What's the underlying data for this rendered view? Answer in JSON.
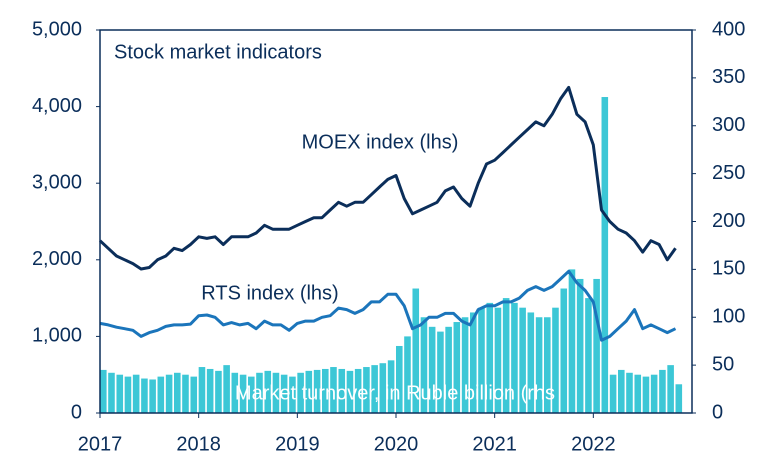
{
  "chart_data": {
    "type": "line",
    "title": "Stock market indicators",
    "x": [
      2017,
      2017.083,
      2017.167,
      2017.25,
      2017.333,
      2017.417,
      2017.5,
      2017.583,
      2017.667,
      2017.75,
      2017.833,
      2017.917,
      2018,
      2018.083,
      2018.167,
      2018.25,
      2018.333,
      2018.417,
      2018.5,
      2018.583,
      2018.667,
      2018.75,
      2018.833,
      2018.917,
      2019,
      2019.083,
      2019.167,
      2019.25,
      2019.333,
      2019.417,
      2019.5,
      2019.583,
      2019.667,
      2019.75,
      2019.833,
      2019.917,
      2020,
      2020.083,
      2020.167,
      2020.25,
      2020.333,
      2020.417,
      2020.5,
      2020.583,
      2020.667,
      2020.75,
      2020.833,
      2020.917,
      2021,
      2021.083,
      2021.167,
      2021.25,
      2021.333,
      2021.417,
      2021.5,
      2021.583,
      2021.667,
      2021.75,
      2021.833,
      2021.917,
      2022,
      2022.083,
      2022.167,
      2022.25,
      2022.333,
      2022.417,
      2022.5,
      2022.583,
      2022.667,
      2022.75,
      2022.833
    ],
    "series": [
      {
        "name": "Market turnover, in Ruble billion (rhs",
        "type": "bar",
        "axis": "y2",
        "color": "#3cc7d6",
        "values": [
          45,
          42,
          40,
          38,
          40,
          36,
          35,
          38,
          40,
          42,
          40,
          38,
          48,
          46,
          44,
          50,
          42,
          40,
          38,
          42,
          44,
          42,
          40,
          38,
          42,
          44,
          45,
          46,
          48,
          46,
          44,
          46,
          48,
          50,
          52,
          55,
          70,
          80,
          130,
          100,
          90,
          85,
          90,
          95,
          100,
          105,
          110,
          115,
          110,
          120,
          115,
          110,
          105,
          100,
          100,
          110,
          130,
          150,
          140,
          120,
          140,
          330,
          40,
          45,
          42,
          40,
          38,
          40,
          45,
          50,
          30
        ]
      },
      {
        "name": "MOEX index (lhs)",
        "color": "#0b2e5a",
        "values": [
          2250,
          2150,
          2050,
          2000,
          1950,
          1880,
          1900,
          2000,
          2050,
          2150,
          2120,
          2200,
          2300,
          2280,
          2300,
          2200,
          2300,
          2300,
          2300,
          2350,
          2450,
          2400,
          2400,
          2400,
          2450,
          2500,
          2550,
          2550,
          2650,
          2750,
          2700,
          2750,
          2750,
          2850,
          2950,
          3050,
          3100,
          2800,
          2600,
          2650,
          2700,
          2750,
          2900,
          2950,
          2800,
          2700,
          3000,
          3250,
          3300,
          3400,
          3500,
          3600,
          3700,
          3800,
          3750,
          3900,
          4100,
          4250,
          3900,
          3800,
          3500,
          2650,
          2500,
          2400,
          2350,
          2250,
          2100,
          2250,
          2200,
          2000,
          2150
        ]
      },
      {
        "name": "RTS index (lhs)",
        "color": "#1b75bb",
        "values": [
          1170,
          1150,
          1120,
          1100,
          1080,
          1000,
          1050,
          1080,
          1130,
          1150,
          1150,
          1160,
          1270,
          1280,
          1250,
          1150,
          1180,
          1150,
          1170,
          1100,
          1200,
          1150,
          1150,
          1080,
          1170,
          1200,
          1200,
          1250,
          1270,
          1370,
          1350,
          1300,
          1350,
          1450,
          1450,
          1550,
          1550,
          1400,
          1100,
          1150,
          1250,
          1250,
          1300,
          1300,
          1200,
          1150,
          1350,
          1400,
          1400,
          1450,
          1450,
          1500,
          1600,
          1650,
          1600,
          1650,
          1750,
          1850,
          1700,
          1600,
          1450,
          950,
          1000,
          1100,
          1200,
          1350,
          1100,
          1150,
          1100,
          1050,
          1100
        ]
      }
    ],
    "xlim": [
      2017,
      2023
    ],
    "xticks": [
      2017,
      2018,
      2019,
      2020,
      2021,
      2022
    ],
    "ylim": [
      0,
      5000
    ],
    "yticks": [
      0,
      {
        "value": 1000,
        "label": "1,000"
      },
      {
        "value": 2000,
        "label": "2,000"
      },
      {
        "value": 3000,
        "label": "3,000"
      },
      {
        "value": 4000,
        "label": "4,000"
      },
      {
        "value": 5000,
        "label": "5,000"
      }
    ],
    "y2lim": [
      0,
      400
    ],
    "y2ticks": [
      0,
      50,
      100,
      150,
      200,
      250,
      300,
      350,
      400
    ]
  }
}
